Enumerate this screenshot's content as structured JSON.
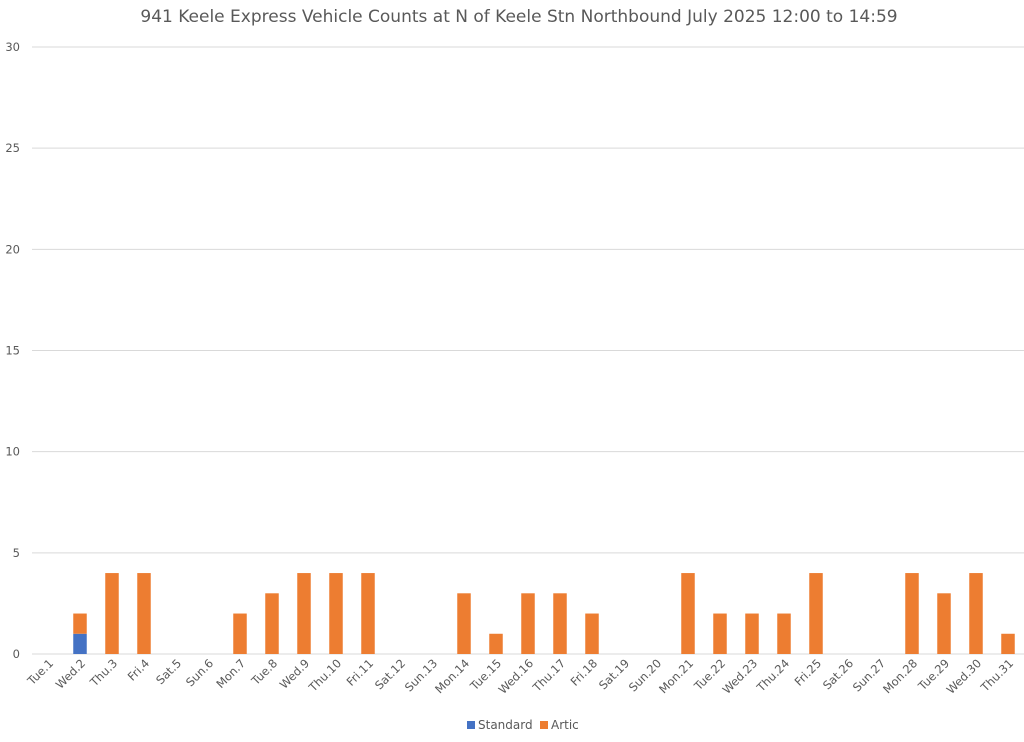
{
  "chart_data": {
    "type": "bar",
    "stacked": true,
    "title": "941 Keele Express Vehicle Counts at N of Keele Stn Northbound July 2025  12:00 to 14:59",
    "xlabel": "",
    "ylabel": "",
    "ylim": [
      0,
      30
    ],
    "yticks": [
      0,
      5,
      10,
      15,
      20,
      25,
      30
    ],
    "grid": true,
    "legend_position": "bottom",
    "categories": [
      "Tue.1",
      "Wed.2",
      "Thu.3",
      "Fri.4",
      "Sat.5",
      "Sun.6",
      "Mon.7",
      "Tue.8",
      "Wed.9",
      "Thu.10",
      "Fri.11",
      "Sat.12",
      "Sun.13",
      "Mon.14",
      "Tue.15",
      "Wed.16",
      "Thu.17",
      "Fri.18",
      "Sat.19",
      "Sun.20",
      "Mon.21",
      "Tue.22",
      "Wed.23",
      "Thu.24",
      "Fri.25",
      "Sat.26",
      "Sun.27",
      "Mon.28",
      "Tue.29",
      "Wed.30",
      "Thu.31"
    ],
    "series": [
      {
        "name": "Standard",
        "color": "#4472c4",
        "values": [
          0,
          1,
          0,
          0,
          0,
          0,
          0,
          0,
          0,
          0,
          0,
          0,
          0,
          0,
          0,
          0,
          0,
          0,
          0,
          0,
          0,
          0,
          0,
          0,
          0,
          0,
          0,
          0,
          0,
          0,
          0
        ]
      },
      {
        "name": "Artic",
        "color": "#ed7d31",
        "values": [
          0,
          1,
          4,
          4,
          0,
          0,
          2,
          3,
          4,
          4,
          4,
          0,
          0,
          3,
          1,
          3,
          3,
          2,
          0,
          0,
          4,
          2,
          2,
          2,
          4,
          0,
          0,
          4,
          3,
          4,
          1
        ]
      }
    ]
  }
}
